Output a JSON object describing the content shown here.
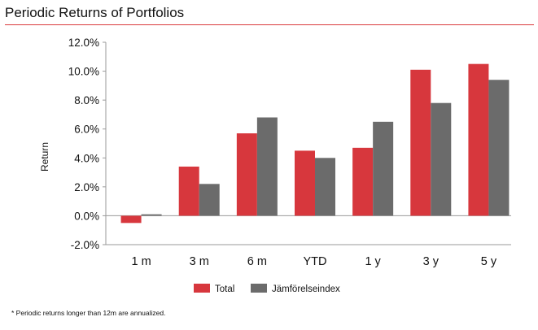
{
  "header": {
    "title": "Periodic Returns of Portfolios"
  },
  "footnote": "* Periodic returns longer than 12m are annualized.",
  "colors": {
    "total": "#d7373d",
    "benchmark": "#6b6b6b",
    "rule": "#d9393c",
    "axis": "#9a9a9a"
  },
  "chart_data": {
    "type": "bar",
    "title": "",
    "xlabel": "",
    "ylabel": "Return",
    "categories": [
      "1 m",
      "3 m",
      "6 m",
      "YTD",
      "1 y",
      "3 y",
      "5 y"
    ],
    "series": [
      {
        "name": "Total",
        "values": [
          -0.5,
          3.4,
          5.7,
          4.5,
          4.7,
          10.1,
          10.5
        ]
      },
      {
        "name": "Jämförelseindex",
        "values": [
          0.1,
          2.2,
          6.8,
          4.0,
          6.5,
          7.8,
          9.4
        ]
      }
    ],
    "ylim": [
      -2.0,
      12.0
    ],
    "yticks": [
      "-2.0%",
      "0.0%",
      "2.0%",
      "4.0%",
      "6.0%",
      "8.0%",
      "10.0%",
      "12.0%"
    ],
    "grid": false,
    "legend": "bottom-center"
  }
}
